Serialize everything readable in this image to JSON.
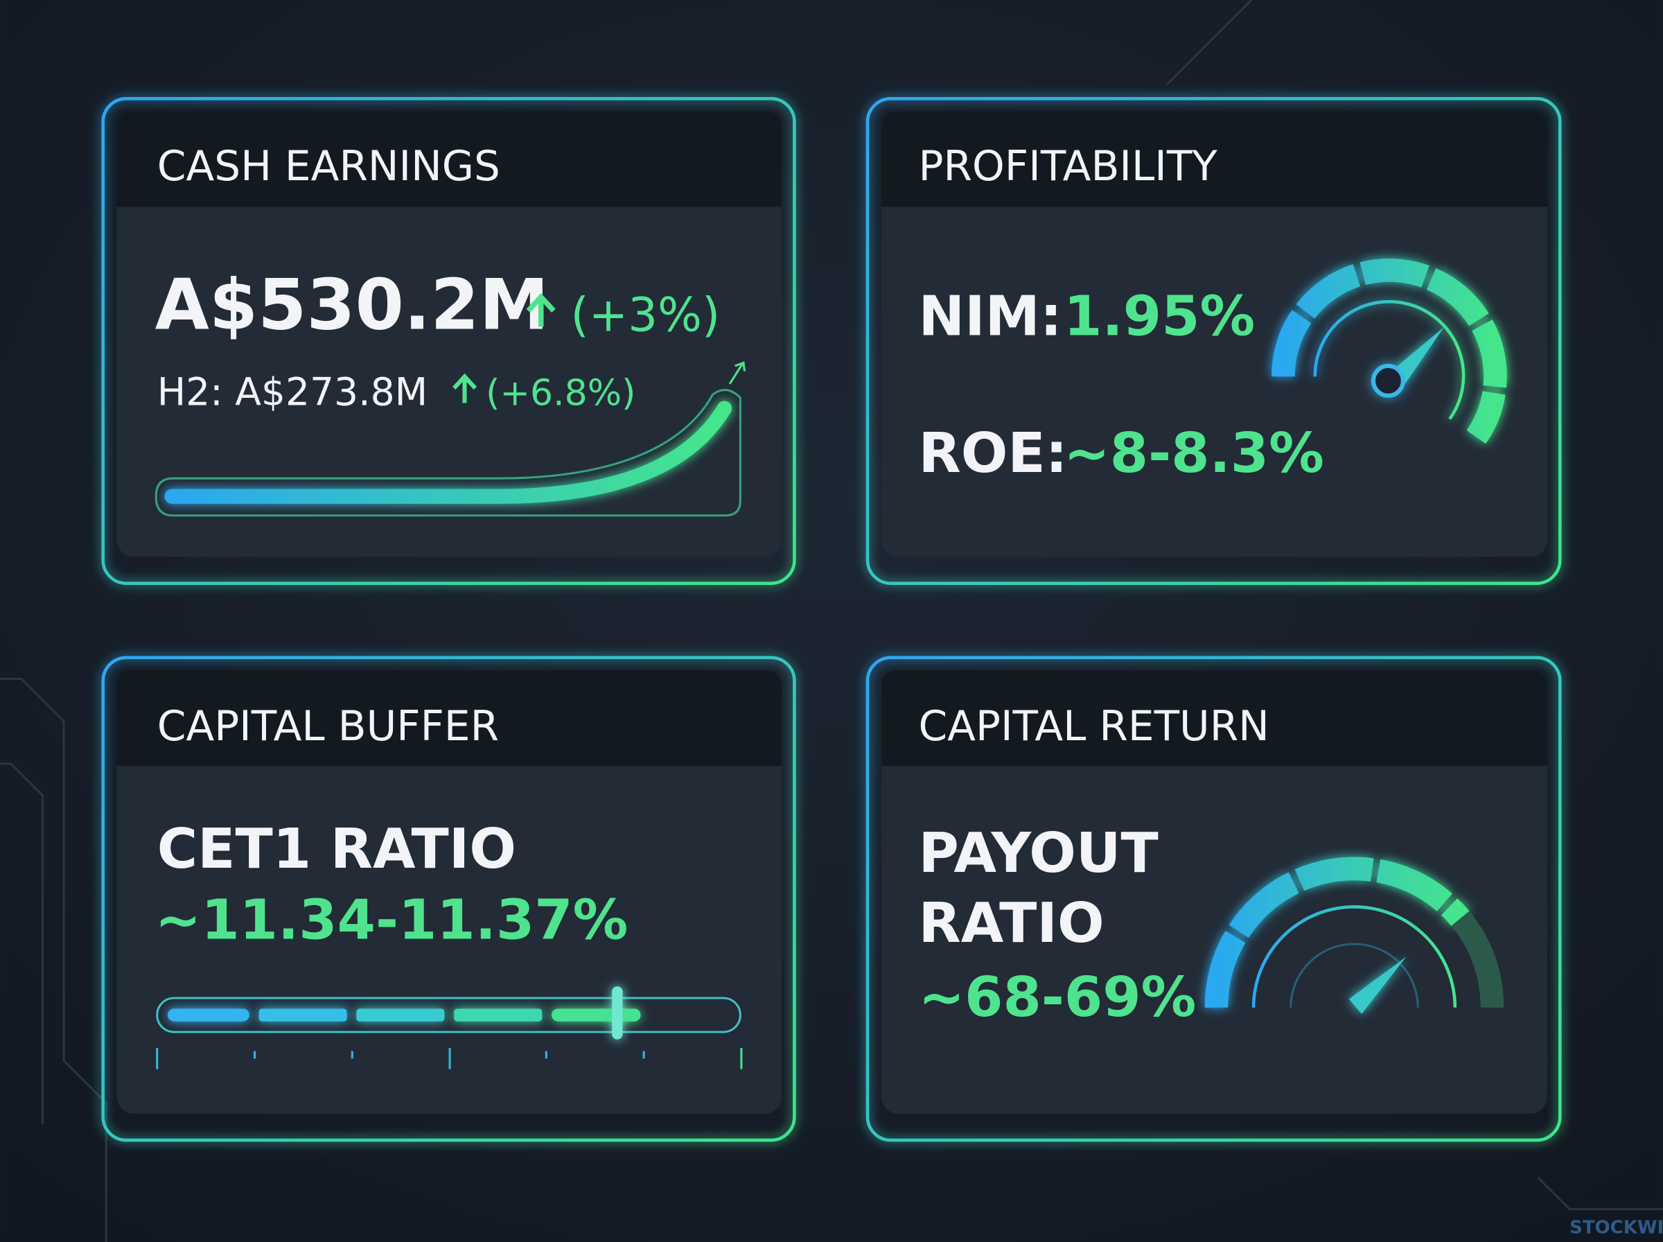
{
  "watermark": "STOCKWIRE X",
  "cards": [
    {
      "title": "CASH EARNINGS",
      "value": "A$530.2M",
      "change": "(+3%)",
      "sub_value": "H2: A$273.8M",
      "sub_change": "(+6.8%)"
    },
    {
      "title": "PROFITABILITY",
      "metrics": [
        {
          "label": "NIM:",
          "value": "1.95%"
        },
        {
          "label": "ROE:",
          "value": "~8-8.3%"
        }
      ]
    },
    {
      "title": "CAPITAL BUFFER",
      "label": "CET1 RATIO",
      "value": "~11.34-11.37%"
    },
    {
      "title": "CAPITAL RETURN",
      "label_lines": [
        "PAYOUT",
        "RATIO"
      ],
      "value": "~68-69%"
    }
  ]
}
